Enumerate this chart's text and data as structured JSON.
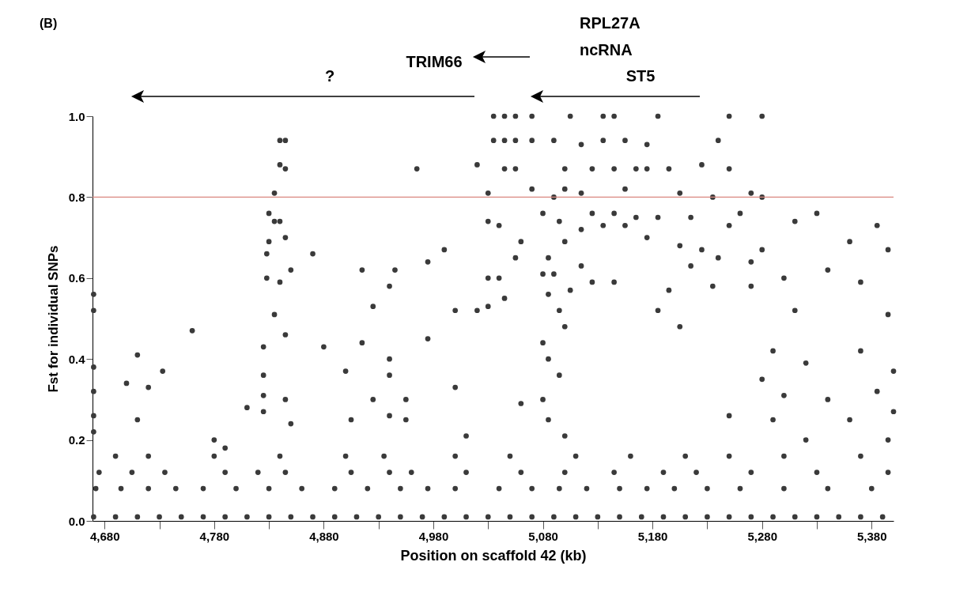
{
  "chart_data": {
    "type": "scatter",
    "xlabel": "Position on scaffold 42 (kb)",
    "ylabel": "Fst for individual SNPs",
    "xlim": [
      4669,
      5400
    ],
    "ylim": [
      0,
      1.0
    ],
    "xticks": [
      {
        "value": 4680,
        "label": "4,680"
      },
      {
        "value": 4730,
        "label": null
      },
      {
        "value": 4780,
        "label": "4,780"
      },
      {
        "value": 4830,
        "label": null
      },
      {
        "value": 4880,
        "label": "4,880"
      },
      {
        "value": 4930,
        "label": null
      },
      {
        "value": 4980,
        "label": "4,980"
      },
      {
        "value": 5030,
        "label": null
      },
      {
        "value": 5080,
        "label": "5,080"
      },
      {
        "value": 5130,
        "label": null
      },
      {
        "value": 5180,
        "label": "5,180"
      },
      {
        "value": 5230,
        "label": null
      },
      {
        "value": 5280,
        "label": "5,280"
      },
      {
        "value": 5330,
        "label": null
      },
      {
        "value": 5380,
        "label": "5,380"
      }
    ],
    "yticks": [
      {
        "value": 0,
        "label": "0.0"
      },
      0.2,
      0.4,
      0.6,
      0.8,
      {
        "value": 1,
        "label": "1.0"
      }
    ],
    "grid": false,
    "legend": false,
    "marker": "circle",
    "ref_lines": [
      {
        "axis": "y",
        "value": 0.8,
        "color": "#d98880"
      }
    ],
    "series": [
      {
        "color": "#3a3a3a",
        "x": [
          4670,
          4690,
          4710,
          4730,
          4750,
          4770,
          4790,
          4810,
          4830,
          4850,
          4870,
          4890,
          4910,
          4930,
          4950,
          4970,
          4990,
          5010,
          5030,
          5050,
          5070,
          5090,
          5110,
          5130,
          5150,
          5170,
          5190,
          5210,
          5230,
          5250,
          5270,
          5290,
          5310,
          5330,
          5350,
          5370,
          5390,
          4672,
          4695,
          4720,
          4745,
          4770,
          4800,
          4830,
          4860,
          4890,
          4920,
          4950,
          4975,
          5000,
          5040,
          5070,
          5095,
          5120,
          5150,
          5175,
          5200,
          5230,
          5260,
          5300,
          5340,
          5380,
          4675,
          4705,
          4735,
          4790,
          4820,
          4845,
          4905,
          4940,
          4960,
          5010,
          5060,
          5100,
          5145,
          5190,
          5220,
          5270,
          5330,
          5395,
          4690,
          4720,
          4780,
          4840,
          4900,
          4935,
          5000,
          5050,
          5110,
          5160,
          5210,
          5250,
          5300,
          5370,
          4670,
          4670,
          4670,
          4670,
          4670,
          4670,
          4700,
          4710,
          4710,
          4720,
          4733,
          4760,
          4780,
          4790,
          4810,
          4825,
          4825,
          4825,
          4825,
          4828,
          4828,
          4830,
          4830,
          4835,
          4835,
          4835,
          4840,
          4840,
          4840,
          4840,
          4845,
          4845,
          4845,
          4845,
          4845,
          4850,
          4850,
          4870,
          4880,
          4900,
          4905,
          4915,
          4915,
          4925,
          4925,
          4940,
          4940,
          4940,
          4940,
          4945,
          4955,
          4955,
          4965,
          4975,
          4975,
          4990,
          5000,
          5000,
          5010,
          5020,
          5020,
          5030,
          5030,
          5030,
          5030,
          5035,
          5035,
          5040,
          5040,
          5045,
          5045,
          5045,
          5045,
          5055,
          5055,
          5055,
          5055,
          5060,
          5060,
          5070,
          5070,
          5070,
          5080,
          5080,
          5080,
          5080,
          5085,
          5085,
          5085,
          5085,
          5090,
          5090,
          5090,
          5095,
          5095,
          5095,
          5100,
          5100,
          5100,
          5100,
          5100,
          5105,
          5105,
          5115,
          5115,
          5115,
          5115,
          5125,
          5125,
          5125,
          5135,
          5135,
          5135,
          5145,
          5145,
          5145,
          5145,
          5155,
          5155,
          5155,
          5165,
          5165,
          5175,
          5175,
          5175,
          5185,
          5185,
          5185,
          5195,
          5195,
          5205,
          5205,
          5205,
          5215,
          5215,
          5225,
          5225,
          5235,
          5235,
          5240,
          5240,
          5250,
          5250,
          5250,
          5250,
          5260,
          5270,
          5270,
          5270,
          5280,
          5280,
          5280,
          5280,
          5290,
          5290,
          5300,
          5300,
          5310,
          5310,
          5320,
          5320,
          5330,
          5340,
          5340,
          5360,
          5360,
          5370,
          5370,
          5385,
          5385,
          5395,
          5395,
          5395,
          5400,
          5400
        ],
        "values": [
          0.01,
          0.01,
          0.01,
          0.01,
          0.01,
          0.01,
          0.01,
          0.01,
          0.01,
          0.01,
          0.01,
          0.01,
          0.01,
          0.01,
          0.01,
          0.01,
          0.01,
          0.01,
          0.01,
          0.01,
          0.01,
          0.01,
          0.01,
          0.01,
          0.01,
          0.01,
          0.01,
          0.01,
          0.01,
          0.01,
          0.01,
          0.01,
          0.01,
          0.01,
          0.01,
          0.01,
          0.01,
          0.08,
          0.08,
          0.08,
          0.08,
          0.08,
          0.08,
          0.08,
          0.08,
          0.08,
          0.08,
          0.08,
          0.08,
          0.08,
          0.08,
          0.08,
          0.08,
          0.08,
          0.08,
          0.08,
          0.08,
          0.08,
          0.08,
          0.08,
          0.08,
          0.08,
          0.12,
          0.12,
          0.12,
          0.12,
          0.12,
          0.12,
          0.12,
          0.12,
          0.12,
          0.12,
          0.12,
          0.12,
          0.12,
          0.12,
          0.12,
          0.12,
          0.12,
          0.12,
          0.16,
          0.16,
          0.16,
          0.16,
          0.16,
          0.16,
          0.16,
          0.16,
          0.16,
          0.16,
          0.16,
          0.16,
          0.16,
          0.16,
          0.56,
          0.52,
          0.38,
          0.32,
          0.26,
          0.22,
          0.34,
          0.41,
          0.25,
          0.33,
          0.37,
          0.47,
          0.2,
          0.18,
          0.28,
          0.43,
          0.36,
          0.31,
          0.27,
          0.6,
          0.66,
          0.76,
          0.69,
          0.81,
          0.74,
          0.51,
          0.94,
          0.88,
          0.74,
          0.59,
          0.94,
          0.87,
          0.7,
          0.46,
          0.3,
          0.62,
          0.24,
          0.66,
          0.43,
          0.37,
          0.25,
          0.44,
          0.62,
          0.3,
          0.53,
          0.58,
          0.4,
          0.36,
          0.26,
          0.62,
          0.25,
          0.3,
          0.87,
          0.64,
          0.45,
          0.67,
          0.52,
          0.33,
          0.21,
          0.52,
          0.88,
          0.81,
          0.74,
          0.6,
          0.53,
          0.94,
          1.0,
          0.73,
          0.6,
          0.87,
          0.94,
          1.0,
          0.55,
          0.87,
          0.94,
          1.0,
          0.65,
          0.69,
          0.29,
          0.82,
          0.94,
          1.0,
          0.76,
          0.61,
          0.44,
          0.3,
          0.65,
          0.56,
          0.4,
          0.25,
          0.8,
          0.94,
          0.61,
          0.74,
          0.52,
          0.36,
          0.82,
          0.87,
          0.69,
          0.48,
          0.21,
          1.0,
          0.57,
          0.81,
          0.93,
          0.72,
          0.63,
          0.87,
          0.76,
          0.59,
          0.94,
          1.0,
          0.73,
          1.0,
          0.87,
          0.76,
          0.59,
          0.94,
          0.82,
          0.73,
          0.87,
          0.75,
          0.93,
          0.87,
          0.7,
          1.0,
          0.75,
          0.52,
          0.87,
          0.57,
          0.81,
          0.68,
          0.48,
          0.75,
          0.63,
          0.88,
          0.67,
          0.8,
          0.58,
          0.94,
          0.65,
          1.0,
          0.87,
          0.73,
          0.26,
          0.76,
          0.81,
          0.64,
          0.58,
          1.0,
          0.8,
          0.67,
          0.35,
          0.42,
          0.25,
          0.6,
          0.31,
          0.52,
          0.74,
          0.39,
          0.2,
          0.76,
          0.62,
          0.3,
          0.25,
          0.69,
          0.59,
          0.42,
          0.73,
          0.32,
          0.67,
          0.51,
          0.2,
          0.37,
          0.27
        ]
      }
    ],
    "annotations": [
      "(B)",
      "?",
      "TRIM66",
      "RPL27A",
      "ncRNA",
      "ST5"
    ]
  }
}
